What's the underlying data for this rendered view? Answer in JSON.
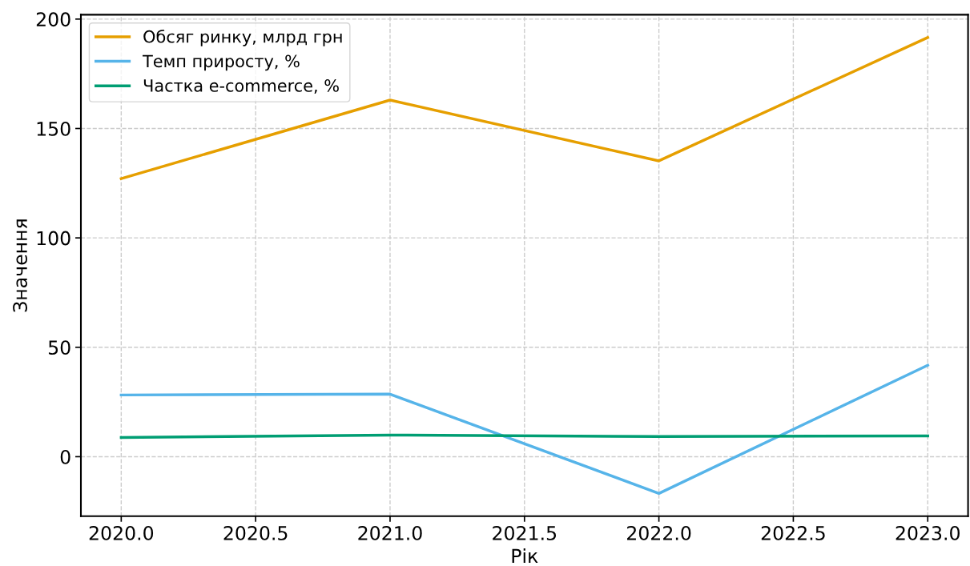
{
  "chart_data": {
    "type": "line",
    "xlabel": "Рік",
    "ylabel": "Значення",
    "x": [
      2020,
      2021,
      2022,
      2023
    ],
    "series": [
      {
        "name": "Обсяг ринку, млрд грн",
        "color": "#e69f00",
        "values": [
          127.1,
          163,
          135.2,
          191.6
        ]
      },
      {
        "name": "Темп приросту, %",
        "color": "#56b4e9",
        "values": [
          28.2,
          28.6,
          -16.8,
          41.8
        ]
      },
      {
        "name": "Частка e-commerce, %",
        "color": "#009e73",
        "values": [
          8.8,
          9.9,
          9.2,
          9.5
        ]
      }
    ],
    "xlim": [
      2019.85,
      2023.15
    ],
    "xticks": [
      {
        "value": 2020,
        "label": "2020.0"
      },
      {
        "value": 2020.5,
        "label": "2020.5"
      },
      {
        "value": 2021,
        "label": "2021.0"
      },
      {
        "value": 2021.5,
        "label": "2021.5"
      },
      {
        "value": 2022,
        "label": "2022.0"
      },
      {
        "value": 2022.5,
        "label": "2022.5"
      },
      {
        "value": 2023,
        "label": "2023.0"
      }
    ],
    "ylim": [
      -27.2,
      202
    ],
    "yticks": [
      0,
      50,
      100,
      150,
      200
    ],
    "grid": true,
    "legend": "top left",
    "line_style": "solid",
    "marker": "none"
  }
}
